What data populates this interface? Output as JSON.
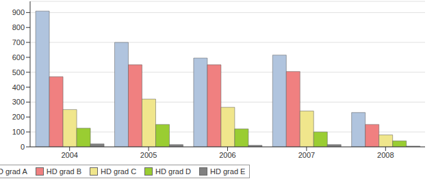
{
  "chart_data": {
    "type": "bar",
    "categories": [
      "2004",
      "2005",
      "2006",
      "2007",
      "2008"
    ],
    "series": [
      {
        "name": "HD grad A",
        "color": "#b0c4de",
        "values": [
          910,
          700,
          595,
          615,
          230
        ]
      },
      {
        "name": "HD grad B",
        "color": "#f08080",
        "values": [
          470,
          550,
          550,
          505,
          150
        ]
      },
      {
        "name": "HD grad C",
        "color": "#f0e68c",
        "values": [
          250,
          320,
          265,
          240,
          80
        ]
      },
      {
        "name": "HD grad D",
        "color": "#9acd32",
        "values": [
          125,
          150,
          120,
          100,
          40
        ]
      },
      {
        "name": "HD grad E",
        "color": "#808080",
        "values": [
          20,
          15,
          10,
          15,
          5
        ]
      }
    ],
    "ylim": [
      0,
      975
    ],
    "yticks": [
      0,
      100,
      200,
      300,
      400,
      500,
      600,
      700,
      800,
      900
    ],
    "grid": true,
    "legend": "bottom left"
  }
}
